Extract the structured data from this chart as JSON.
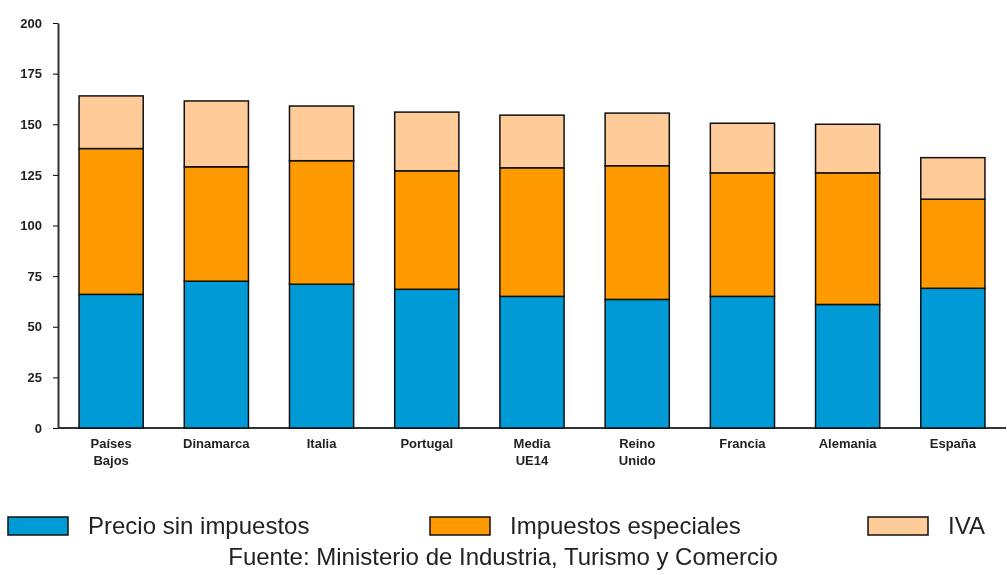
{
  "chart_data": {
    "type": "bar",
    "stacked": true,
    "categories": [
      "Países Bajos",
      "Dinamarca",
      "Italia",
      "Portugal",
      "Media UE14",
      "Reino Unido",
      "Francia",
      "Alemania",
      "España"
    ],
    "series": [
      {
        "name": "Precio sin impuestos",
        "color": "#009ad6",
        "values": [
          66,
          72.5,
          71,
          68.5,
          65,
          63.5,
          65,
          61,
          69
        ]
      },
      {
        "name": "Impuestos especiales",
        "color": "#ff9900",
        "values": [
          72,
          56.5,
          61,
          58.5,
          63.5,
          66,
          61,
          65,
          44
        ]
      },
      {
        "name": "IVA",
        "color": "#ffcc99",
        "values": [
          26,
          32.5,
          27,
          29,
          26,
          26,
          24.5,
          24,
          20.5
        ]
      }
    ],
    "ylim": [
      0,
      200
    ],
    "yticks": [
      0,
      25,
      50,
      75,
      100,
      125,
      150,
      175,
      200
    ],
    "grid": false,
    "legend": "bottom",
    "annotations": [
      "Fuente: Ministerio de Industria, Turismo y Comercio"
    ]
  }
}
